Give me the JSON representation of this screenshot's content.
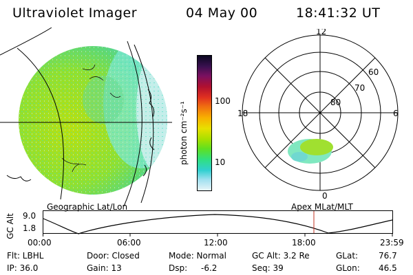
{
  "header": {
    "instrument": "Ultraviolet Imager",
    "date": "04 May 00",
    "time": "18:41:32 UT"
  },
  "colorbar": {
    "unit_label": "photon cm⁻²s⁻¹",
    "ticks": [
      "100",
      "10"
    ],
    "colors": [
      "#0a0820",
      "#3a1050",
      "#7a1060",
      "#b01030",
      "#e03020",
      "#f07010",
      "#f8b000",
      "#e8e000",
      "#a8e000",
      "#60e020",
      "#30e080",
      "#30d0d0",
      "#a0e0f0",
      "#e8f4f8"
    ]
  },
  "polar_plot": {
    "mlt_labels": [
      "12",
      "18",
      "6",
      "0"
    ],
    "mlat_labels": [
      "60",
      "70",
      "80"
    ]
  },
  "map_labels": {
    "left": "Geographic Lat/Lon",
    "right": "Apex MLat/MLT"
  },
  "altitude_plot": {
    "ylabel": "GC Alt",
    "yticks": [
      "9.0",
      "1.8"
    ],
    "xticks": [
      "00:00",
      "06:00",
      "12:00",
      "18:00",
      "23:59"
    ],
    "marker_color": "#c03020"
  },
  "info": {
    "flt": "Flt: LBHL",
    "ip": "IP: 36.0",
    "door": "Door: Closed",
    "gain": "Gain: 13",
    "mode": "Mode: Normal",
    "dsp_label": "Dsp:",
    "dsp_value": "-6.2",
    "gc_alt": "GC Alt: 3.2 Re",
    "seq": "Seq: 39",
    "glat_label": "GLat:",
    "glat_value": "76.7",
    "glon_label": "GLon:",
    "glon_value": "46.5"
  }
}
